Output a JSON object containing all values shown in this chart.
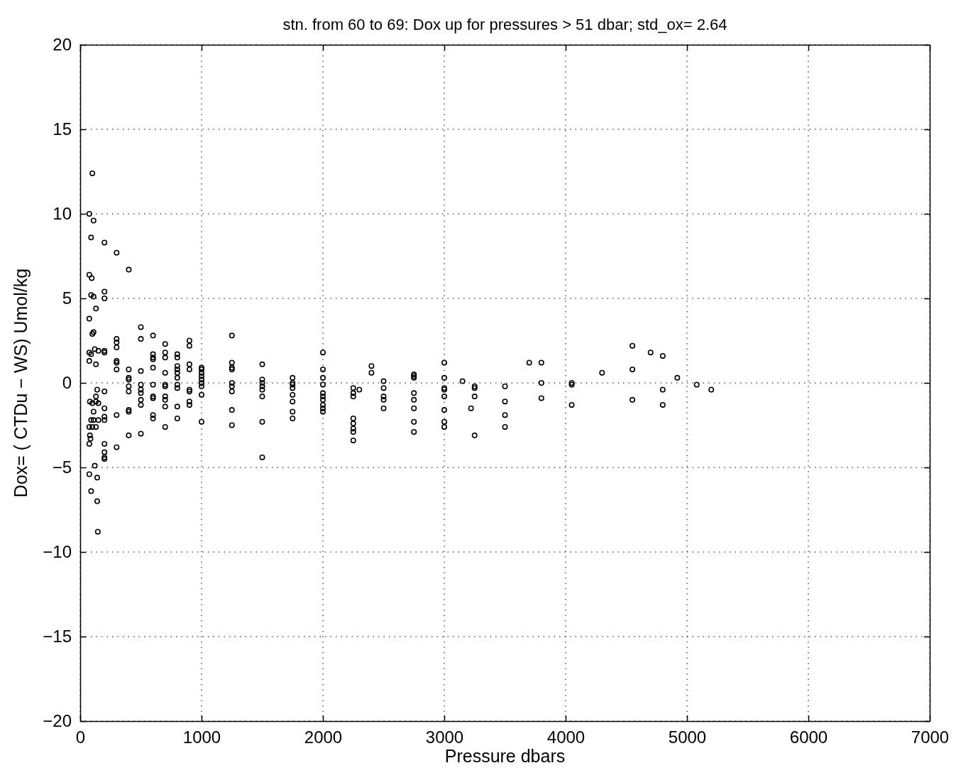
{
  "chart_data": {
    "type": "scatter",
    "title": "stn. from 60 to 69: Dox up for pressures > 51 dbar; std_ox= 2.64",
    "xlabel": "Pressure dbars",
    "ylabel": "Dox= ( CTDu − WS) Umol/kg",
    "xlim": [
      0,
      7000
    ],
    "xticks": [
      0,
      1000,
      2000,
      3000,
      4000,
      5000,
      6000,
      7000
    ],
    "ylim": [
      -20,
      20
    ],
    "yticks": [
      -20,
      -15,
      -10,
      -5,
      0,
      5,
      10,
      15,
      20
    ],
    "grid": true,
    "marker": "circle",
    "series": [
      {
        "color": "#000000",
        "x": [
          100,
          75,
          110,
          90,
          200,
          300,
          400,
          75,
          95,
          200,
          200,
          90,
          110,
          130,
          75,
          100,
          110,
          120,
          75,
          90,
          75,
          130,
          200,
          200,
          150,
          140,
          200,
          130,
          80,
          100,
          130,
          150,
          110,
          200,
          200,
          200,
          90,
          110,
          150,
          100,
          130,
          75,
          80,
          85,
          75,
          200,
          200,
          200,
          200,
          120,
          75,
          140,
          90,
          140,
          145,
          300,
          300,
          300,
          300,
          300,
          300,
          300,
          300,
          400,
          400,
          400,
          400,
          400,
          400,
          400,
          400,
          500,
          500,
          500,
          500,
          500,
          500,
          500,
          500,
          500,
          600,
          600,
          600,
          600,
          600,
          600,
          600,
          600,
          600,
          600,
          700,
          700,
          700,
          700,
          700,
          700,
          700,
          700,
          700,
          700,
          800,
          800,
          800,
          800,
          800,
          800,
          800,
          800,
          800,
          800,
          900,
          900,
          900,
          900,
          900,
          900,
          900,
          900,
          1000,
          1000,
          1000,
          1000,
          1000,
          1000,
          1000,
          1000,
          1000,
          1250,
          1250,
          1250,
          1250,
          1250,
          1250,
          1250,
          1250,
          1250,
          1500,
          1500,
          1500,
          1500,
          1500,
          1500,
          1500,
          1500,
          1750,
          1750,
          1750,
          1750,
          1750,
          1750,
          1750,
          1750,
          2000,
          2000,
          2000,
          2000,
          2000,
          2000,
          2000,
          2000,
          2000,
          2000,
          2250,
          2250,
          2250,
          2250,
          2250,
          2250,
          2250,
          2250,
          2300,
          2400,
          2400,
          2500,
          2500,
          2500,
          2500,
          2500,
          2750,
          2750,
          2750,
          2750,
          2750,
          2750,
          2750,
          2750,
          3000,
          3000,
          3000,
          3000,
          3000,
          3000,
          3000,
          3000,
          3150,
          3250,
          3250,
          3250,
          3250,
          3220,
          3500,
          3500,
          3500,
          3500,
          3700,
          3800,
          3800,
          3800,
          4050,
          4050,
          4050,
          4300,
          4550,
          4550,
          4550,
          4700,
          4800,
          4800,
          4800,
          4920,
          5080,
          5200
        ],
        "values": [
          12.4,
          10,
          9.6,
          8.6,
          8.3,
          7.7,
          6.7,
          6.4,
          6.2,
          5.4,
          5.0,
          5.2,
          5.1,
          4.4,
          3.8,
          2.9,
          3.0,
          2.0,
          1.8,
          1.7,
          1.3,
          1.1,
          1.8,
          1.9,
          1.9,
          -0.4,
          -0.5,
          -0.8,
          -1.1,
          -1.2,
          -1.1,
          -1.2,
          -1.7,
          -1.5,
          -2.0,
          -2.2,
          -2.2,
          -2.2,
          -2.2,
          -2.6,
          -2.6,
          -2.6,
          -3.1,
          -3.3,
          -3.6,
          -3.6,
          -4.1,
          -4.4,
          -4.5,
          -4.9,
          -5.4,
          -5.6,
          -6.4,
          -7.0,
          -8.8,
          2.6,
          2.4,
          2.1,
          1.3,
          1.2,
          0.8,
          -1.9,
          -3.8,
          0.3,
          0.2,
          -0.2,
          -0.5,
          -1.6,
          -1.7,
          -3.1,
          0.8,
          3.3,
          2.6,
          0.7,
          -0.1,
          -0.4,
          -0.6,
          -1.0,
          -1.3,
          -3.0,
          2.8,
          1.7,
          1.5,
          1.4,
          0.9,
          -0.1,
          -0.8,
          -0.9,
          -1.9,
          -2.1,
          2.3,
          1.8,
          1.5,
          0.6,
          -0.1,
          -0.2,
          -0.8,
          -1.0,
          -1.4,
          -2.6,
          1.7,
          1.5,
          1.0,
          0.8,
          0.6,
          0.3,
          -0.1,
          -0.3,
          -1.4,
          -2.1,
          2.5,
          2.2,
          1.1,
          0.8,
          -0.4,
          -0.5,
          -1.1,
          -1.3,
          0.9,
          0.8,
          0.6,
          0.4,
          0.2,
          0.0,
          -0.2,
          -0.7,
          -2.3,
          2.8,
          1.2,
          0.9,
          0.8,
          0.0,
          -0.2,
          -0.5,
          -1.6,
          -2.5,
          1.1,
          0.2,
          0.0,
          -0.2,
          -0.4,
          -0.8,
          -2.3,
          -4.4,
          0.3,
          0.0,
          -0.1,
          -0.3,
          -0.7,
          -1.1,
          -1.7,
          -2.1,
          1.8,
          0.8,
          0.3,
          -0.1,
          -0.6,
          -0.8,
          -1.0,
          -1.3,
          -1.7,
          -1.5,
          -0.3,
          -0.6,
          -0.8,
          -2.1,
          -2.4,
          -2.7,
          -2.9,
          -3.4,
          -0.4,
          1.0,
          0.6,
          0.1,
          -0.3,
          -0.8,
          -1.0,
          -1.5,
          0.5,
          0.4,
          0.3,
          -0.6,
          -1.0,
          -1.5,
          -2.3,
          -2.9,
          1.2,
          0.3,
          -0.3,
          -0.4,
          -0.8,
          -1.6,
          -2.3,
          -2.6,
          0.1,
          -0.2,
          -0.3,
          -0.8,
          -3.1,
          -1.5,
          -0.2,
          -1.1,
          -1.9,
          -2.6,
          1.2,
          1.2,
          0.0,
          -0.9,
          0.0,
          -0.1,
          -1.3,
          0.6,
          2.2,
          0.8,
          -1.0,
          1.8,
          1.6,
          -0.4,
          -1.3,
          0.3,
          -0.1,
          -0.4
        ]
      }
    ]
  }
}
